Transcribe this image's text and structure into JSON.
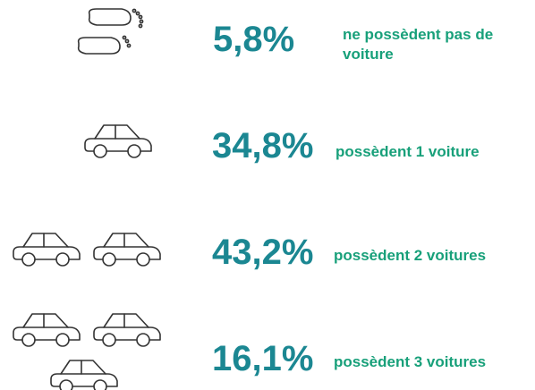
{
  "items": [
    {
      "value": "5,8%",
      "label": "ne possèdent pas de voiture"
    },
    {
      "value": "34,8%",
      "label": "possèdent 1 voiture"
    },
    {
      "value": "43,2%",
      "label": "possèdent 2 voitures"
    },
    {
      "value": "16,1%",
      "label": "possèdent 3 voitures"
    }
  ]
}
